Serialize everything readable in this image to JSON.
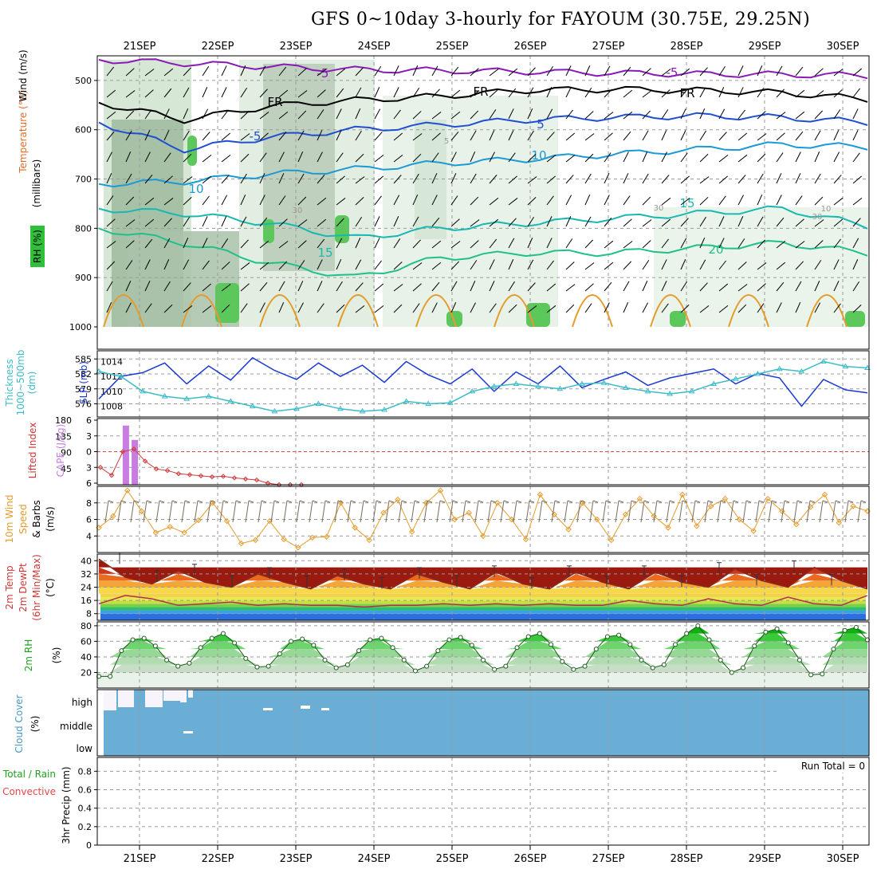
{
  "title": "GFS 0~10day 3-hourly for FAYOUM (30.75E, 29.25N)",
  "chart_data": [
    {
      "type": "line",
      "panel": "upper-air",
      "dates": [
        "21SEP",
        "22SEP",
        "23SEP",
        "24SEP",
        "25SEP",
        "26SEP",
        "27SEP",
        "28SEP",
        "29SEP",
        "30SEP"
      ],
      "ylabel_parts": [
        "RH (%)",
        "Temperature (°C)",
        "Wind (m/s)",
        "(millibars)"
      ],
      "y_ticks": [
        500,
        600,
        700,
        800,
        900,
        1000
      ],
      "ylim": [
        450,
        1000
      ],
      "contour_labels": [
        "-5",
        "-5",
        "FR",
        "FR",
        "FR",
        "-5",
        "5",
        "10",
        "10",
        "15",
        "15",
        "20",
        "5",
        "30",
        "30",
        "30",
        "10"
      ],
      "isotherms": [
        {
          "name": "-5",
          "color": "#8a1ab8",
          "values": [
            458,
            465,
            472,
            478,
            480,
            482,
            485,
            487,
            488,
            490
          ]
        },
        {
          "name": "FR",
          "color": "#000000",
          "values": [
            545,
            580,
            552,
            540,
            532,
            520,
            518,
            520,
            525,
            538
          ]
        },
        {
          "name": "5",
          "color": "#1f4fd0",
          "values": [
            585,
            640,
            615,
            600,
            590,
            580,
            575,
            572,
            575,
            585
          ]
        },
        {
          "name": "10",
          "color": "#1a9ad6",
          "values": [
            710,
            705,
            690,
            680,
            668,
            660,
            650,
            640,
            630,
            635
          ]
        },
        {
          "name": "15",
          "color": "#18b8b0",
          "values": [
            760,
            770,
            790,
            820,
            800,
            790,
            780,
            770,
            760,
            795
          ]
        },
        {
          "name": "20",
          "color": "#20c08a",
          "values": [
            800,
            830,
            870,
            900,
            860,
            850,
            850,
            840,
            830,
            850
          ]
        }
      ]
    },
    {
      "type": "line",
      "panel": "thickness-slp",
      "ylabel_left": "Thickness 1000~500mb (dm)",
      "ylabel_right": "SLP (mb)",
      "left_ticks": [
        585,
        582,
        579,
        576
      ],
      "right_ticks": [
        1014,
        1012,
        1010,
        1008
      ],
      "series": [
        {
          "name": "SLP (mb)",
          "color": "#1a3ad0",
          "values": [
            1009.0,
            1012.0,
            1012.5,
            1013.8,
            1011.0,
            1013.4,
            1011.5,
            1014.5,
            1012.8,
            1011.6,
            1013.8,
            1012.0,
            1013.5,
            1011.2,
            1014.0,
            1012.2,
            1011.0,
            1013.0,
            1010.0,
            1012.6,
            1011.0,
            1013.4,
            1010.5,
            1011.6,
            1012.6,
            1010.8,
            1011.8,
            1012.4,
            1013.0,
            1011.0,
            1012.4,
            1011.8,
            1008.0,
            1011.6,
            1010.2,
            1009.8
          ]
        },
        {
          "name": "Thickness (dm)",
          "color": "#3cbcc8",
          "values": [
            582.5,
            581.5,
            578.5,
            577.5,
            577.0,
            577.5,
            576.5,
            575.5,
            574.5,
            575.0,
            576.0,
            575.0,
            574.5,
            574.8,
            576.5,
            576.0,
            576.2,
            578.5,
            579.5,
            580.0,
            579.5,
            579.0,
            580.0,
            580.2,
            579.2,
            578.5,
            578.0,
            578.5,
            580.0,
            581.0,
            582.0,
            583.0,
            582.5,
            584.5,
            583.5,
            583.2
          ]
        }
      ]
    },
    {
      "type": "bar",
      "panel": "cape-li",
      "ylabel_left": "Lifted Index",
      "ylabel_right": "CAPE (J/kg)",
      "left_ticks": [
        -6,
        -3,
        0,
        3,
        6
      ],
      "right_ticks": [
        180,
        135,
        90,
        45
      ],
      "cape_bars": [
        {
          "x": 0.17,
          "value": 165
        },
        {
          "x": 0.33,
          "value": 125
        }
      ],
      "lifted_index": [
        3.0,
        4.5,
        0.0,
        -0.5,
        1.8,
        3.3,
        3.6,
        4.2,
        4.4,
        4.6,
        4.8,
        4.7,
        5.0,
        5.2,
        5.4,
        6.0,
        6.8,
        7.5,
        8.0
      ]
    },
    {
      "type": "line",
      "panel": "wind10m",
      "ylabel_parts": [
        "10m Wind",
        "Speed",
        "& Barbs",
        "(m/s)"
      ],
      "y_ticks": [
        8,
        6,
        4
      ],
      "ylim": [
        2,
        10
      ],
      "series": [
        {
          "name": "10m Wind Speed",
          "color": "#e59b2a",
          "values": [
            5.0,
            6.4,
            9.5,
            7.0,
            4.4,
            5.1,
            4.4,
            5.9,
            8.0,
            5.8,
            3.1,
            3.5,
            5.8,
            3.6,
            2.6,
            3.8,
            3.9,
            8.0,
            5.0,
            3.5,
            6.8,
            8.4,
            4.5,
            8.0,
            9.5,
            6.0,
            6.8,
            4.0,
            8.0,
            6.0,
            3.6,
            9.0,
            6.6,
            4.8,
            8.0,
            6.0,
            3.5,
            6.6,
            8.5,
            6.4,
            5.0,
            9.0,
            5.2,
            7.6,
            8.5,
            6.0,
            4.6,
            8.5,
            7.0,
            5.4,
            7.5,
            9.0,
            5.6,
            7.6,
            7.0
          ]
        }
      ]
    },
    {
      "type": "area",
      "panel": "temp",
      "ylabel_parts": [
        "2m Temp",
        "2m DewPt",
        "(6hr Min/Max)",
        "(°C)"
      ],
      "y_ticks": [
        40,
        32,
        24,
        16,
        8
      ],
      "ylim": [
        4,
        44
      ],
      "series": [
        {
          "name": "2m Temp",
          "color": "#8a2a1a",
          "values": [
            41,
            30,
            26,
            34,
            27,
            24,
            32,
            27,
            23,
            31,
            26,
            23,
            32,
            27,
            23,
            33,
            26,
            23,
            33,
            27,
            23,
            33,
            27,
            24,
            35,
            28,
            24,
            36,
            28,
            23
          ]
        },
        {
          "name": "2m DewPt",
          "color": "#b0304a",
          "values": [
            14,
            19,
            17,
            13,
            14,
            15,
            13,
            14,
            13,
            13,
            12,
            13,
            13,
            14,
            13,
            14,
            13,
            14,
            13,
            13,
            16,
            14,
            13,
            17,
            14,
            13,
            18,
            14,
            13,
            19
          ]
        }
      ]
    },
    {
      "type": "area",
      "panel": "rh",
      "ylabel_parts": [
        "2m RH",
        "(%)"
      ],
      "y_ticks": [
        80,
        60,
        40,
        20
      ],
      "ylim": [
        0,
        85
      ],
      "series": [
        {
          "name": "2m RH",
          "color": "#1ea31e",
          "values": [
            15,
            15,
            48,
            62,
            64,
            54,
            36,
            28,
            32,
            52,
            64,
            70,
            58,
            38,
            27,
            28,
            44,
            60,
            63,
            55,
            36,
            26,
            30,
            48,
            62,
            64,
            52,
            36,
            22,
            28,
            48,
            62,
            65,
            55,
            36,
            24,
            28,
            52,
            66,
            70,
            56,
            34,
            24,
            28,
            50,
            66,
            68,
            56,
            36,
            26,
            30,
            56,
            70,
            80,
            62,
            36,
            20,
            26,
            54,
            72,
            76,
            58,
            36,
            17,
            18,
            50,
            74,
            78,
            62
          ]
        }
      ]
    },
    {
      "type": "bar",
      "panel": "cloud",
      "ylabel_parts": [
        "Cloud Cover",
        "(%)"
      ],
      "y_tick_labels": [
        "high",
        "middle",
        "low"
      ],
      "coverage_percent": 100
    },
    {
      "type": "bar",
      "panel": "precip",
      "ylabel_parts": [
        "Total / Rain",
        "Convective",
        "3hr Precip (mm)"
      ],
      "y_ticks": [
        0.8,
        0.6,
        0.4,
        0.2,
        0
      ],
      "ylim": [
        0,
        0.95
      ],
      "run_total": "Run Total = 0",
      "values": []
    }
  ]
}
